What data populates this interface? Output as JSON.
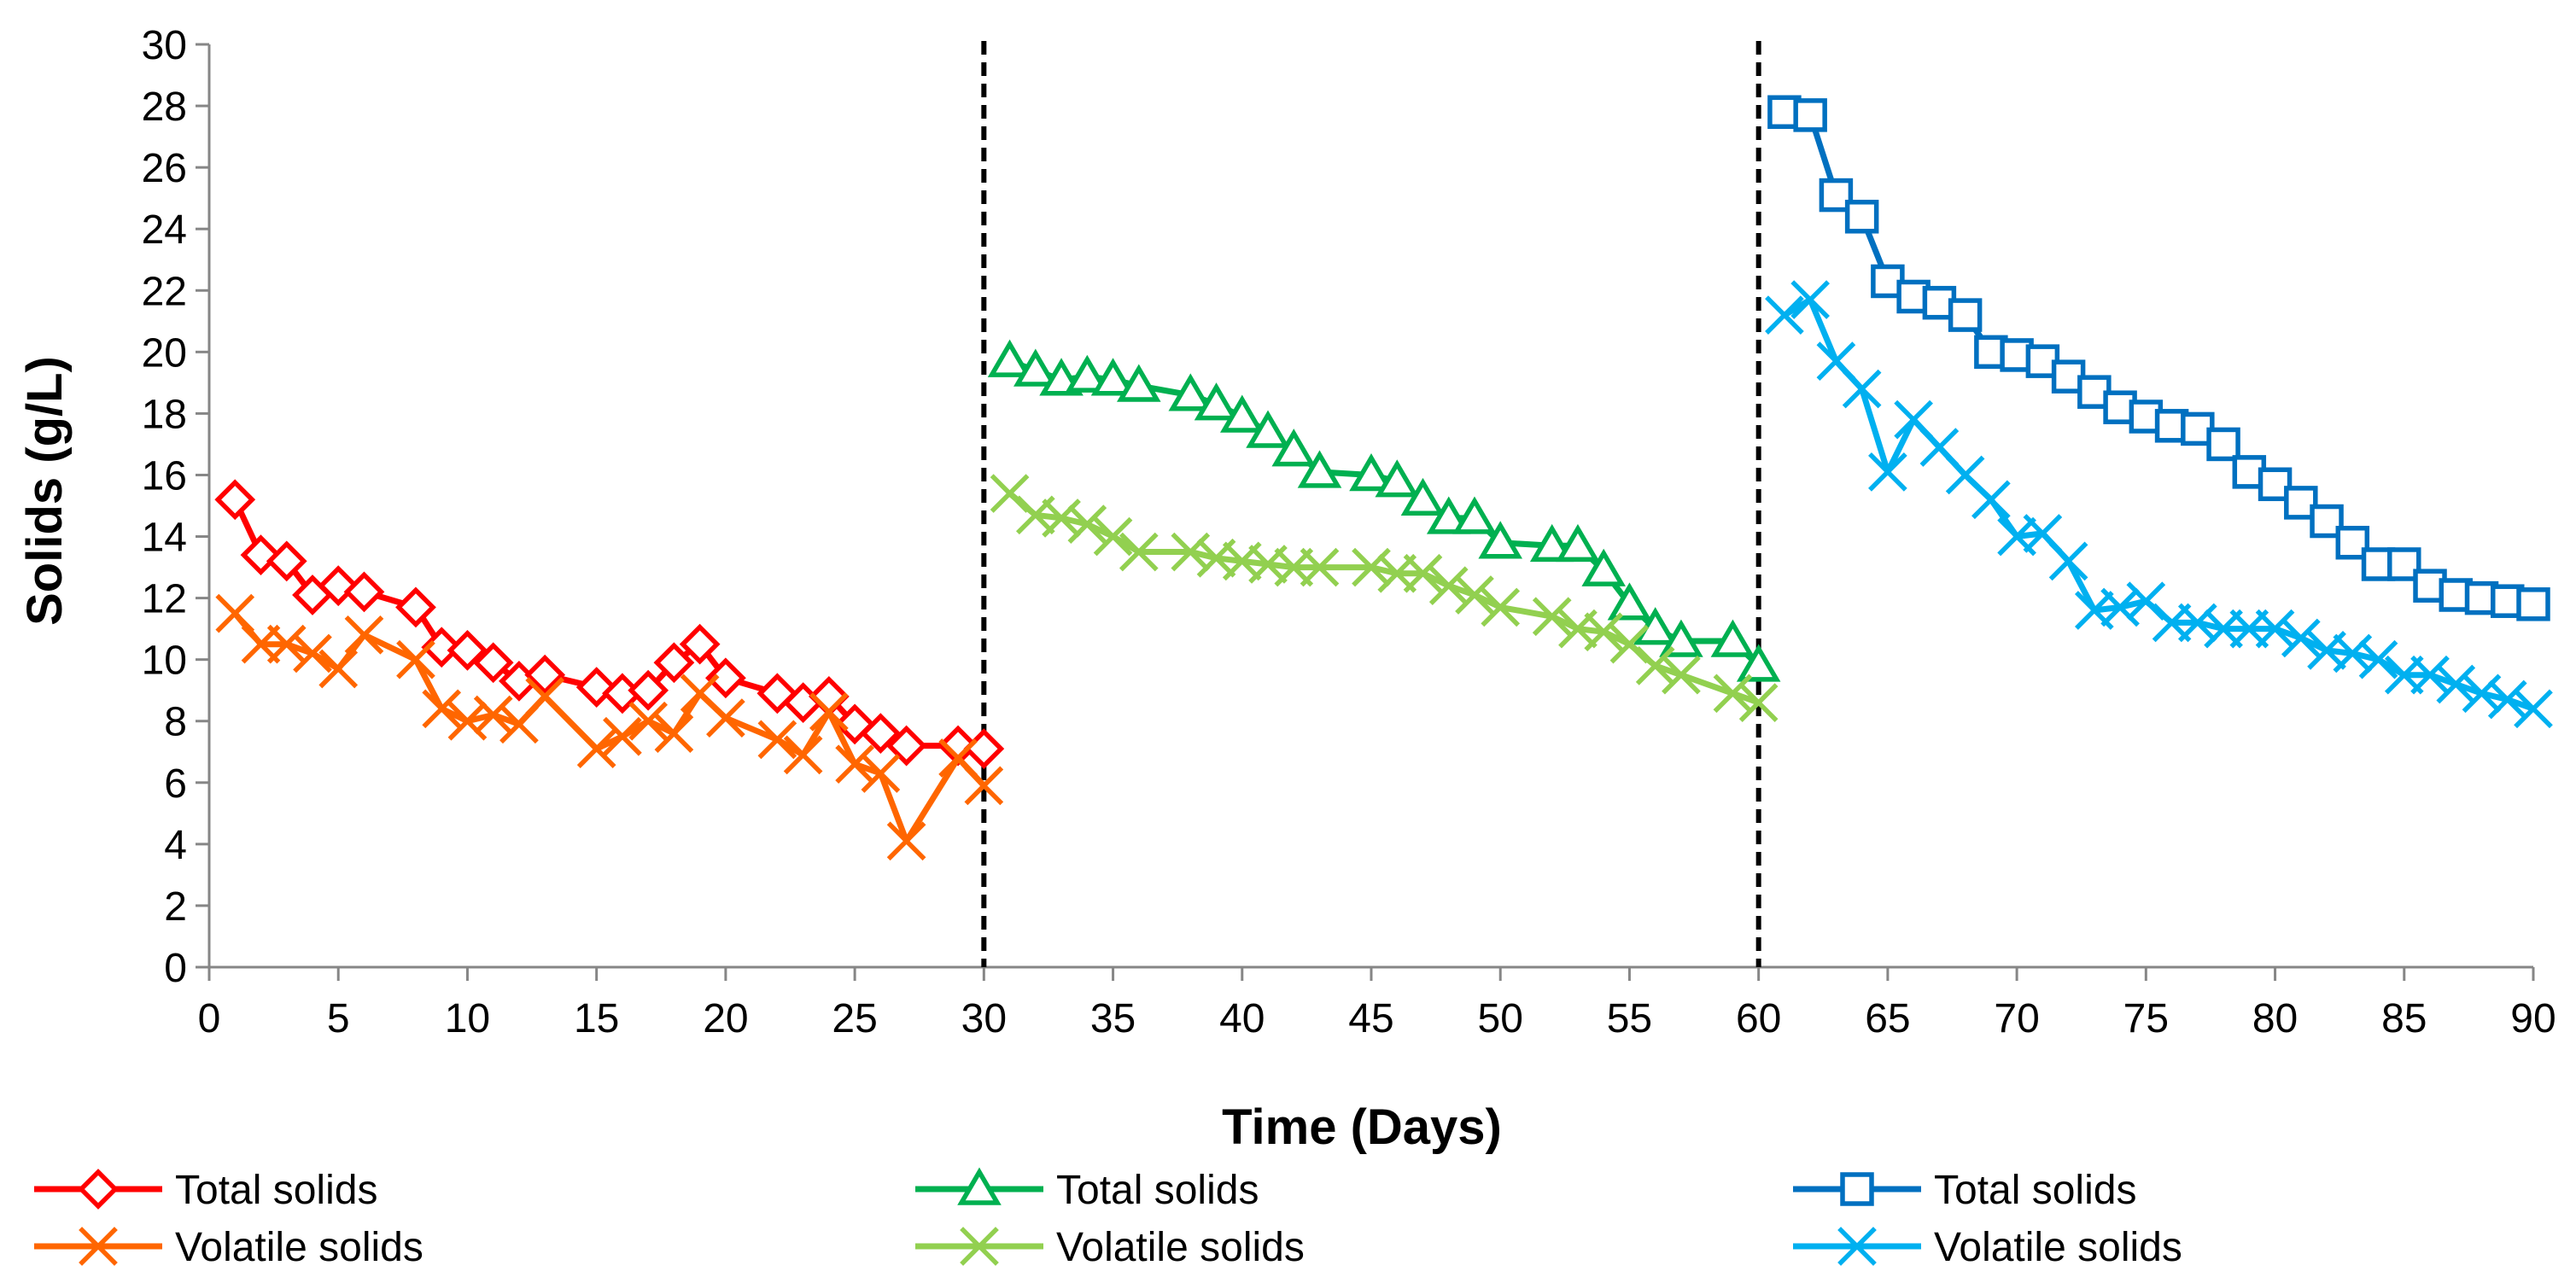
{
  "chart_data": {
    "type": "line",
    "title": "",
    "xlabel": "Time (Days)",
    "ylabel": "Solids (g/L)",
    "xlim": [
      0,
      90
    ],
    "ylim": [
      0,
      30
    ],
    "xticks": [
      0,
      5,
      10,
      15,
      20,
      25,
      30,
      35,
      40,
      45,
      50,
      55,
      60,
      65,
      70,
      75,
      80,
      85,
      90
    ],
    "yticks": [
      0,
      2,
      4,
      6,
      8,
      10,
      12,
      14,
      16,
      18,
      20,
      22,
      24,
      26,
      28,
      30
    ],
    "grid": false,
    "legend_position": "bottom",
    "vertical_markers": [
      30,
      60
    ],
    "series": [
      {
        "name": "Total solids",
        "color": "#ff0000",
        "marker": "diamond",
        "x": [
          1,
          2,
          3,
          4,
          5,
          6,
          8,
          9,
          10,
          11,
          12,
          13,
          15,
          16,
          17,
          18,
          19,
          20,
          22,
          23,
          24,
          25,
          26,
          27,
          29,
          30
        ],
        "y": [
          15.2,
          13.4,
          13.2,
          12.1,
          12.4,
          12.2,
          11.7,
          10.4,
          10.3,
          9.9,
          9.3,
          9.5,
          9.1,
          8.9,
          9.0,
          9.9,
          10.5,
          9.4,
          8.9,
          8.6,
          8.8,
          7.9,
          7.6,
          7.2,
          7.2,
          7.1
        ]
      },
      {
        "name": "Volatile solids",
        "color": "#ff6600",
        "marker": "x",
        "x": [
          1,
          2,
          3,
          4,
          5,
          6,
          8,
          9,
          10,
          11,
          12,
          13,
          15,
          16,
          17,
          18,
          19,
          20,
          22,
          23,
          24,
          25,
          26,
          27,
          29,
          30
        ],
        "y": [
          11.5,
          10.5,
          10.5,
          10.2,
          9.7,
          10.8,
          10.0,
          8.4,
          8.0,
          8.2,
          7.9,
          8.8,
          7.1,
          7.5,
          8.0,
          7.6,
          8.9,
          8.1,
          7.4,
          6.9,
          8.3,
          6.6,
          6.3,
          4.1,
          6.8,
          5.9
        ]
      },
      {
        "name": "Total solids",
        "color": "#00b050",
        "marker": "triangle",
        "x": [
          31,
          32,
          33,
          34,
          35,
          36,
          38,
          39,
          40,
          41,
          42,
          43,
          45,
          46,
          47,
          48,
          49,
          50,
          52,
          53,
          54,
          55,
          56,
          57,
          59,
          60
        ],
        "y": [
          19.7,
          19.4,
          19.1,
          19.2,
          19.1,
          18.9,
          18.6,
          18.3,
          17.9,
          17.4,
          16.8,
          16.1,
          16.0,
          15.8,
          15.2,
          14.6,
          14.6,
          13.8,
          13.7,
          13.7,
          12.9,
          11.8,
          11.0,
          10.6,
          10.6,
          9.8
        ]
      },
      {
        "name": "Volatile solids",
        "color": "#92d050",
        "marker": "x",
        "x": [
          31,
          32,
          33,
          34,
          35,
          36,
          38,
          39,
          40,
          41,
          42,
          43,
          45,
          46,
          47,
          48,
          49,
          50,
          52,
          53,
          54,
          55,
          56,
          57,
          59,
          60
        ],
        "y": [
          15.4,
          14.7,
          14.6,
          14.4,
          14.0,
          13.5,
          13.5,
          13.3,
          13.2,
          13.1,
          13.0,
          13.0,
          13.0,
          12.8,
          12.8,
          12.4,
          12.1,
          11.7,
          11.4,
          11.0,
          10.9,
          10.5,
          9.8,
          9.5,
          8.9,
          8.6
        ]
      },
      {
        "name": "Total solids",
        "color": "#0070c0",
        "marker": "square",
        "x": [
          61,
          62,
          63,
          64,
          65,
          66,
          67,
          68,
          69,
          70,
          71,
          72,
          73,
          74,
          75,
          76,
          77,
          78,
          79,
          80,
          81,
          82,
          83,
          84,
          85,
          86,
          87,
          88,
          89,
          90
        ],
        "y": [
          27.8,
          27.7,
          25.1,
          24.4,
          22.3,
          21.8,
          21.6,
          21.2,
          20.0,
          19.9,
          19.7,
          19.2,
          18.7,
          18.2,
          17.9,
          17.6,
          17.5,
          17.0,
          16.1,
          15.7,
          15.1,
          14.5,
          13.8,
          13.1,
          13.1,
          12.4,
          12.1,
          12.0,
          11.9,
          11.8
        ]
      },
      {
        "name": "Volatile solids",
        "color": "#00b0f0",
        "marker": "x",
        "x": [
          61,
          62,
          63,
          64,
          65,
          66,
          67,
          68,
          69,
          70,
          71,
          72,
          73,
          74,
          75,
          76,
          77,
          78,
          79,
          80,
          81,
          82,
          83,
          84,
          85,
          86,
          87,
          88,
          89,
          90
        ],
        "y": [
          21.2,
          21.7,
          19.7,
          18.8,
          16.1,
          17.8,
          16.9,
          16.0,
          15.2,
          14.0,
          14.1,
          13.2,
          11.6,
          11.7,
          11.9,
          11.2,
          11.2,
          11.0,
          11.0,
          11.0,
          10.7,
          10.3,
          10.2,
          10.0,
          9.5,
          9.5,
          9.2,
          8.9,
          8.7,
          8.4
        ]
      }
    ]
  }
}
